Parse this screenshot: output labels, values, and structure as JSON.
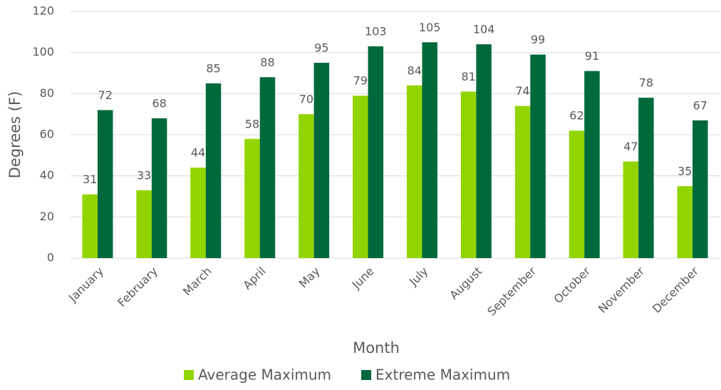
{
  "chart_data": {
    "type": "bar",
    "x_label": "Month",
    "y_label": "Degrees (F)",
    "categories": [
      "January",
      "February",
      "March",
      "April",
      "May",
      "June",
      "July",
      "August",
      "September",
      "October",
      "November",
      "December"
    ],
    "series": [
      {
        "name": "Average Maximum",
        "color": "#92d400",
        "values": [
          31,
          33,
          44,
          58,
          70,
          79,
          84,
          81,
          74,
          62,
          47,
          35
        ]
      },
      {
        "name": "Extreme Maximum",
        "color": "#00693c",
        "values": [
          72,
          68,
          85,
          88,
          95,
          103,
          105,
          104,
          99,
          91,
          78,
          67
        ]
      }
    ],
    "ylim": [
      0,
      120
    ],
    "yticks": [
      0,
      20,
      40,
      60,
      80,
      100,
      120
    ],
    "grid": true,
    "legend": "bottom"
  }
}
